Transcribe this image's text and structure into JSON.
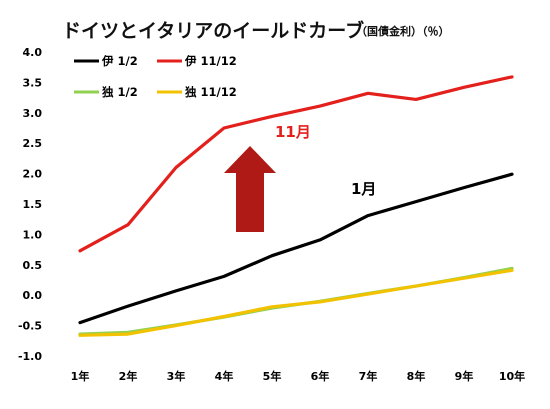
{
  "chart_data": {
    "type": "line",
    "title": "ドイツとイタリアのイールドカーブ",
    "subtitle": "（国債金利）（％）",
    "categories": [
      "1年",
      "2年",
      "3年",
      "4年",
      "5年",
      "6年",
      "7年",
      "8年",
      "9年",
      "10年"
    ],
    "ylim": [
      -1.0,
      4.0
    ],
    "yticks": [
      "4.0",
      "3.5",
      "3.0",
      "2.5",
      "2.0",
      "1.5",
      "1.0",
      "0.5",
      "0.0",
      "-0.5",
      "-1.0"
    ],
    "grid": false,
    "legend_position": "top-left",
    "series": [
      {
        "name": "伊 1/2",
        "color": "#000000",
        "values": [
          -0.45,
          -0.18,
          0.07,
          0.31,
          0.65,
          0.91,
          1.31,
          1.54,
          1.77,
          1.99
        ]
      },
      {
        "name": "伊 11/12",
        "color": "#e3201b",
        "values": [
          0.73,
          1.16,
          2.1,
          2.75,
          2.94,
          3.11,
          3.32,
          3.22,
          3.42,
          3.59
        ]
      },
      {
        "name": "独 1/2",
        "color": "#92d050",
        "values": [
          -0.64,
          -0.61,
          -0.49,
          -0.36,
          -0.21,
          -0.1,
          0.03,
          0.15,
          0.29,
          0.44
        ]
      },
      {
        "name": "独 11/12",
        "color": "#f2c200",
        "values": [
          -0.66,
          -0.64,
          -0.5,
          -0.35,
          -0.19,
          -0.11,
          0.02,
          0.15,
          0.28,
          0.41
        ]
      }
    ],
    "annotations": [
      {
        "text": "11月",
        "color": "#e3201b"
      },
      {
        "text": "1月",
        "color": "#000000"
      }
    ],
    "arrow_color": "#b01a16"
  }
}
